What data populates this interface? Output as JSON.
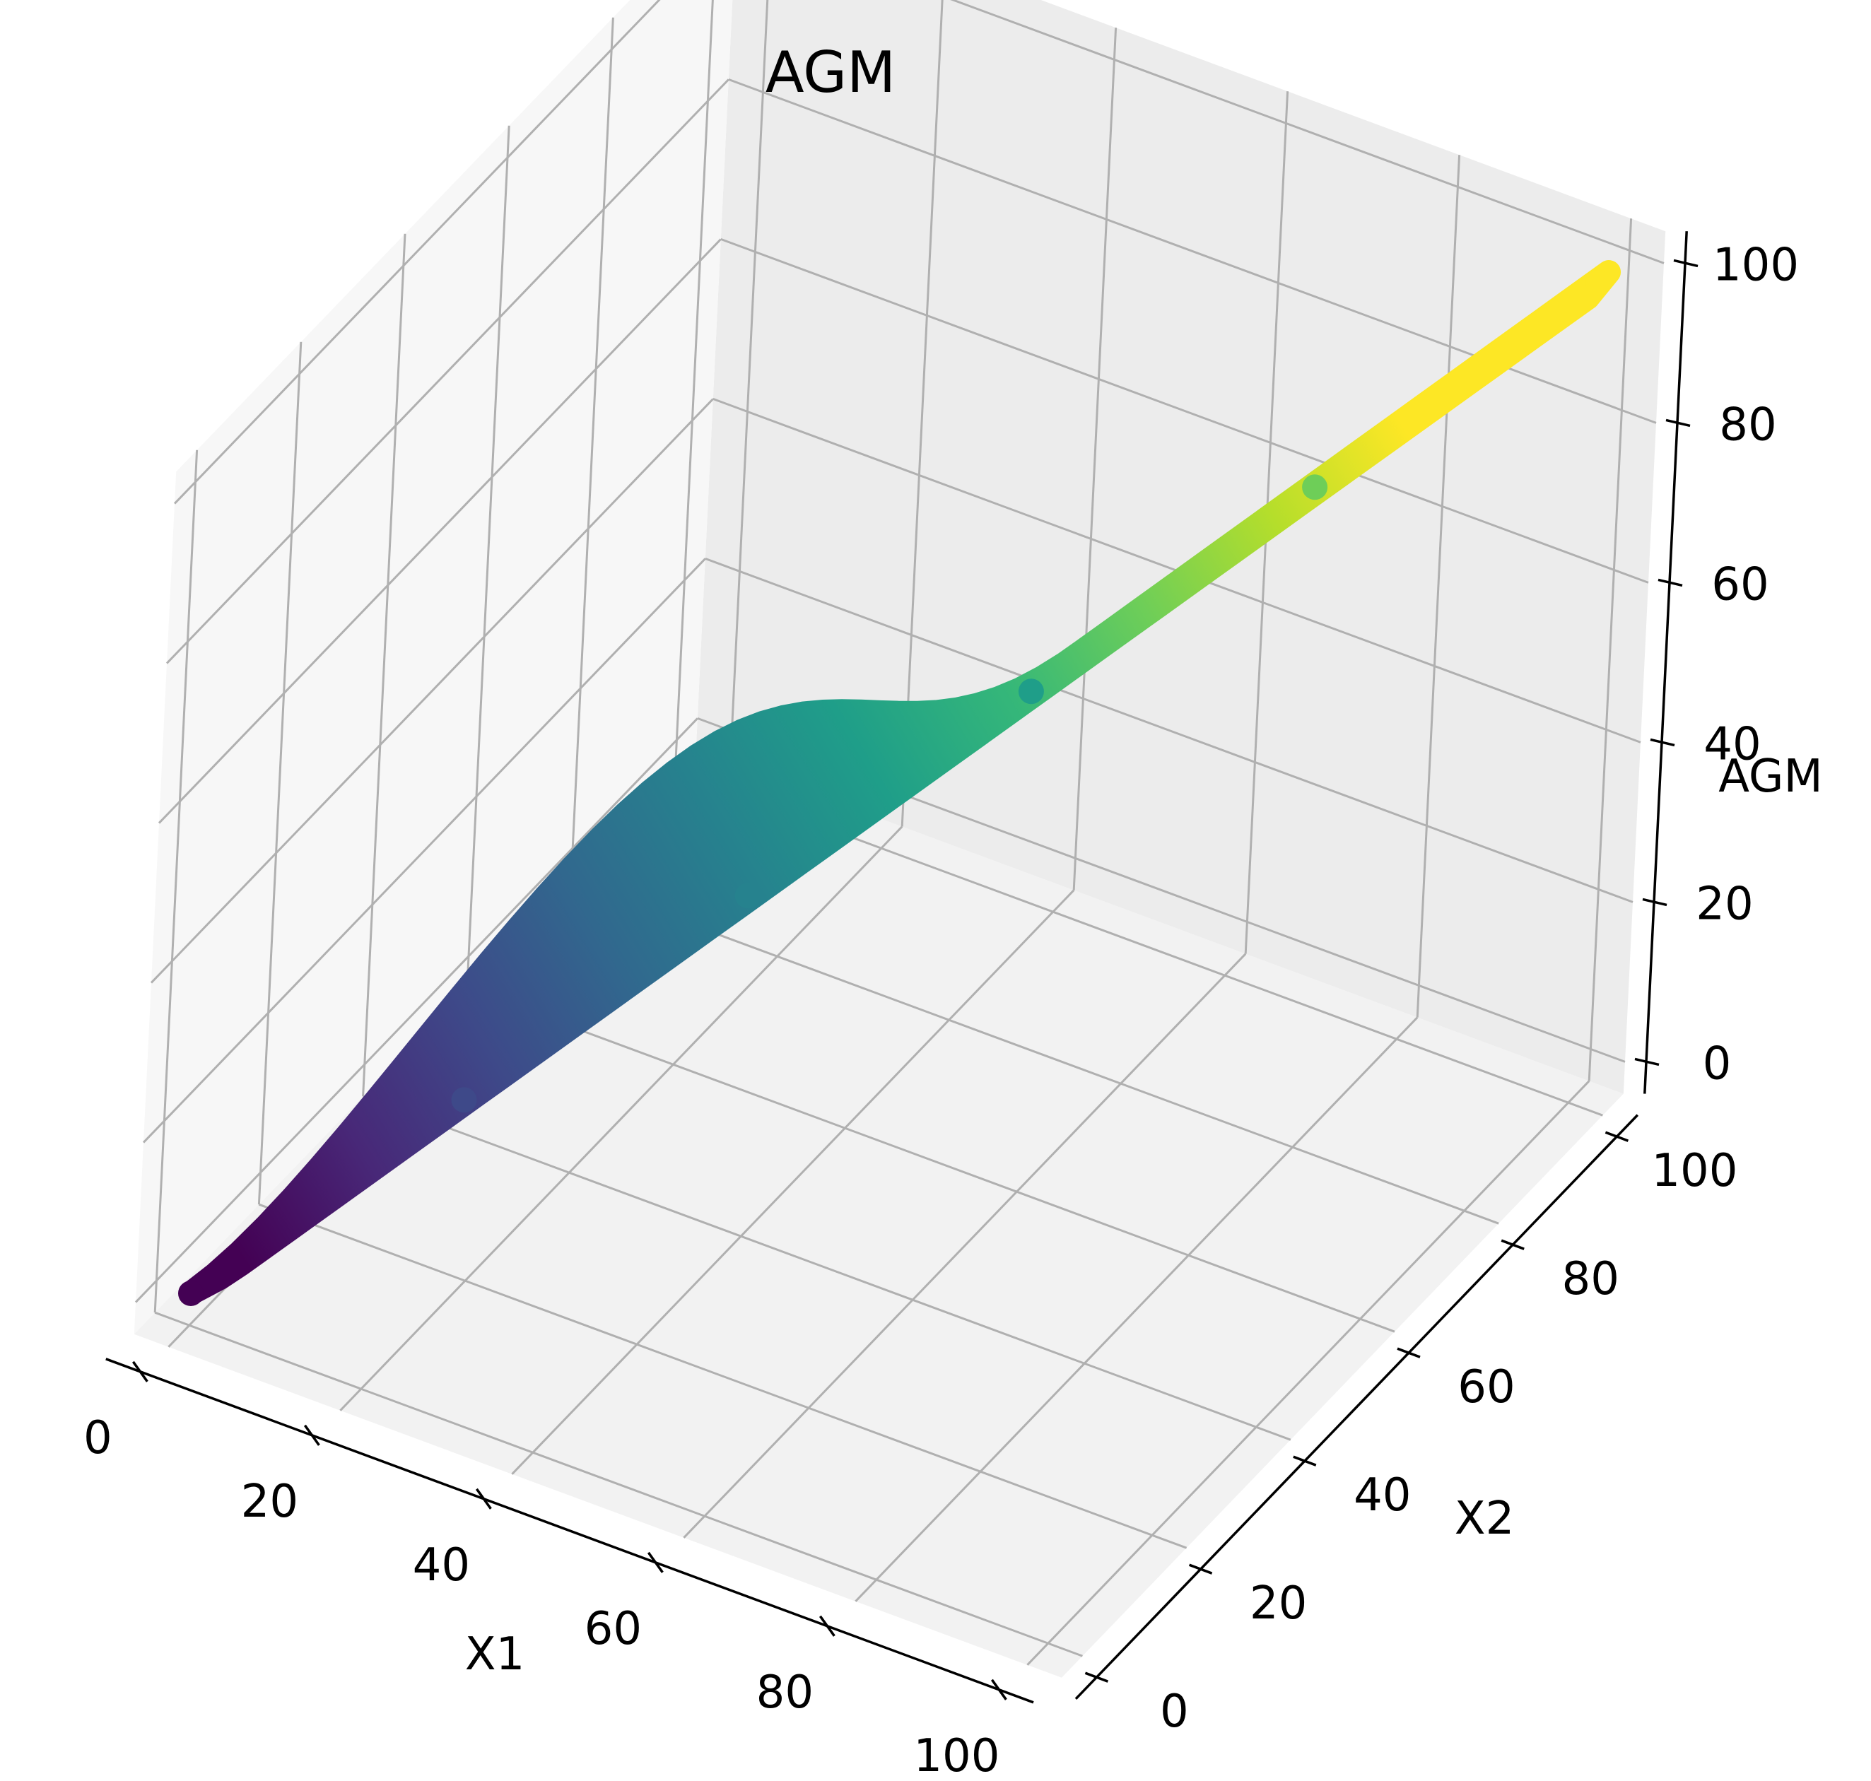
{
  "chart_data": {
    "type": "scatter",
    "projection": "3d",
    "title": "AGM",
    "xlabel": "X1",
    "ylabel": "X2",
    "zlabel": "AGM",
    "xlim": [
      0,
      100
    ],
    "ylim": [
      0,
      100
    ],
    "zlim": [
      0,
      100
    ],
    "xticks": [
      "0",
      "20",
      "40",
      "60",
      "80",
      "100"
    ],
    "yticks": [
      "0",
      "20",
      "40",
      "60",
      "80",
      "100"
    ],
    "zticks": [
      "0",
      "20",
      "40",
      "60",
      "80",
      "100"
    ],
    "grid": true,
    "colormap": "viridis",
    "color_by": "AGM",
    "surface": "AGM(X1, X2) = arithmetic-geometric mean of X1 and X2, sampled along the band X2 = X1",
    "sample_points": [
      {
        "x1": 0,
        "x2": 0,
        "agm": 0
      },
      {
        "x1": 20,
        "x2": 20,
        "agm": 20
      },
      {
        "x1": 40,
        "x2": 40,
        "agm": 40
      },
      {
        "x1": 60,
        "x2": 60,
        "agm": 60
      },
      {
        "x1": 80,
        "x2": 80,
        "agm": 80
      },
      {
        "x1": 100,
        "x2": 100,
        "agm": 100
      }
    ],
    "viridis": [
      "#440154",
      "#482878",
      "#3e4989",
      "#31688e",
      "#26828e",
      "#1f9e89",
      "#35b779",
      "#6ece58",
      "#b5de2b",
      "#fde725"
    ]
  }
}
